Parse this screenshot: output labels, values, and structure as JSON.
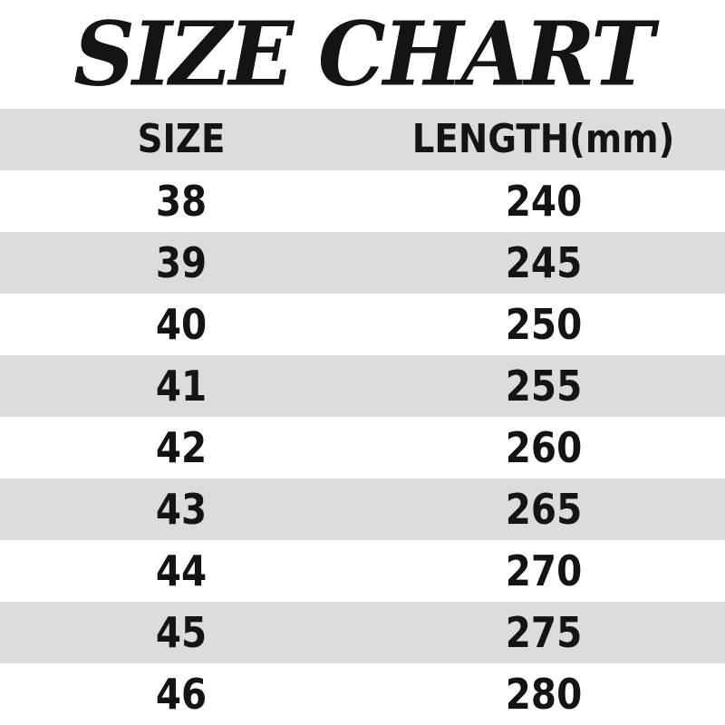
{
  "title": "SIZE CHART",
  "table": {
    "headers": {
      "size": "SIZE",
      "length": "LENGTH(mm)"
    },
    "rows": [
      {
        "size": "38",
        "length": "240"
      },
      {
        "size": "39",
        "length": "245"
      },
      {
        "size": "40",
        "length": "250"
      },
      {
        "size": "41",
        "length": "255"
      },
      {
        "size": "42",
        "length": "260"
      },
      {
        "size": "43",
        "length": "265"
      },
      {
        "size": "44",
        "length": "270"
      },
      {
        "size": "45",
        "length": "275"
      },
      {
        "size": "46",
        "length": "280"
      }
    ]
  },
  "colors": {
    "background": "#ffffff",
    "stripe": "#dcdcdc",
    "text": "#141414"
  }
}
